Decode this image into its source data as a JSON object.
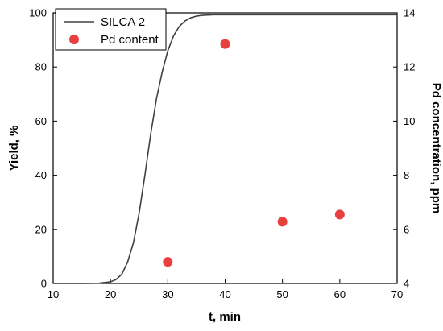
{
  "chart_data": {
    "type": "line",
    "xlabel": "t, min",
    "ylabel": "Yield, %",
    "y2label": "Pd concentration, ppm",
    "xlim": [
      10,
      70
    ],
    "ylim": [
      0,
      100
    ],
    "y2lim": [
      4,
      14
    ],
    "xticks": [
      10,
      20,
      30,
      40,
      50,
      60,
      70
    ],
    "yticks": [
      0,
      20,
      40,
      60,
      80,
      100
    ],
    "y2ticks": [
      4,
      6,
      8,
      10,
      12,
      14
    ],
    "grid": false,
    "legend": "top-left",
    "series": [
      {
        "name": "SILCA 2",
        "kind": "line",
        "axis": "left",
        "color": "#404040",
        "x": [
          10,
          15,
          18,
          20,
          21,
          22,
          23,
          24,
          25,
          26,
          27,
          28,
          29,
          30,
          31,
          32,
          33,
          34,
          35,
          36,
          37,
          38,
          39,
          40,
          45,
          50,
          60,
          70
        ],
        "y": [
          0,
          0,
          0.1,
          0.6,
          1.5,
          3.5,
          8,
          15,
          26,
          40,
          55,
          68,
          78,
          86,
          91.5,
          95,
          97,
          98.2,
          98.8,
          99.1,
          99.2,
          99.3,
          99.3,
          99.3,
          99.3,
          99.3,
          99.3,
          99.3
        ]
      },
      {
        "name": "Pd content",
        "kind": "scatter",
        "axis": "right",
        "color": "#e8403f",
        "x": [
          30,
          40,
          50,
          60
        ],
        "y": [
          4.8,
          12.85,
          6.28,
          6.55
        ]
      }
    ]
  }
}
